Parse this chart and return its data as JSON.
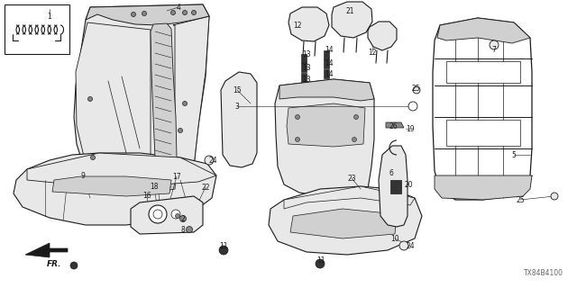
{
  "bg_color": "#ffffff",
  "line_color": "#1a1a1a",
  "fill_light": "#e8e8e8",
  "fill_med": "#d0d0d0",
  "fill_white": "#ffffff",
  "watermark": "TX84B4100",
  "fig_width": 6.4,
  "fig_height": 3.2,
  "dpi": 100,
  "labels": [
    [
      "1",
      55,
      18
    ],
    [
      "4",
      198,
      8
    ],
    [
      "15",
      263,
      100
    ],
    [
      "3",
      263,
      118
    ],
    [
      "9",
      92,
      195
    ],
    [
      "17",
      196,
      196
    ],
    [
      "18",
      171,
      207
    ],
    [
      "16",
      163,
      217
    ],
    [
      "22",
      228,
      208
    ],
    [
      "2",
      203,
      243
    ],
    [
      "8",
      203,
      255
    ],
    [
      "11",
      248,
      273
    ],
    [
      "11",
      356,
      290
    ],
    [
      "24",
      236,
      178
    ],
    [
      "21",
      388,
      12
    ],
    [
      "12",
      330,
      28
    ],
    [
      "12",
      413,
      58
    ],
    [
      "13",
      340,
      60
    ],
    [
      "14",
      365,
      55
    ],
    [
      "13",
      340,
      75
    ],
    [
      "14",
      365,
      70
    ],
    [
      "13",
      340,
      88
    ],
    [
      "14",
      365,
      82
    ],
    [
      "25",
      461,
      98
    ],
    [
      "26",
      436,
      140
    ],
    [
      "19",
      455,
      143
    ],
    [
      "6",
      434,
      192
    ],
    [
      "20",
      453,
      205
    ],
    [
      "23",
      390,
      198
    ],
    [
      "10",
      438,
      265
    ],
    [
      "24",
      455,
      273
    ],
    [
      "5",
      570,
      172
    ],
    [
      "25",
      577,
      222
    ],
    [
      "7",
      548,
      55
    ]
  ]
}
